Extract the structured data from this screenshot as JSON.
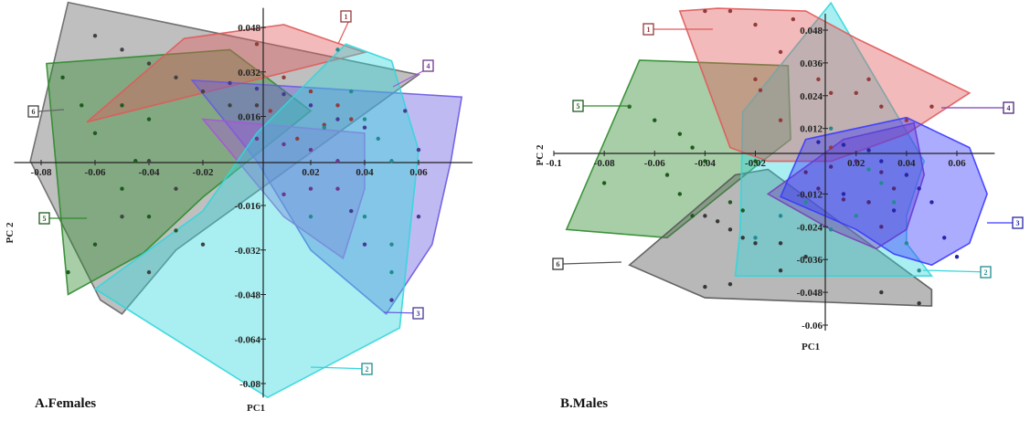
{
  "chart_data": [
    {
      "type": "scatter",
      "panel_title": "A.Females",
      "xlabel": "PC1",
      "ylabel": "PC 2",
      "xlim": [
        -0.09,
        0.08
      ],
      "ylim": [
        -0.085,
        0.055
      ],
      "xticks": [
        "-0.08",
        "-0.06",
        "-0.04",
        "-0.02",
        "0.02",
        "0.04",
        "0.06"
      ],
      "yticks": [
        "0.048",
        "0.032",
        "0.016",
        "-0.016",
        "-0.032",
        "-0.048",
        "-0.064",
        "-0.08"
      ],
      "groups": [
        {
          "name": "1",
          "color": "#e05a5a",
          "hull": [
            [
              -0.027,
              0.044
            ],
            [
              0.01,
              0.049
            ],
            [
              0.04,
              0.039
            ],
            [
              -0.063,
              0.014
            ]
          ],
          "points": [
            [
              0.0,
              0.042
            ],
            [
              0.01,
              0.03
            ],
            [
              0.02,
              0.025
            ],
            [
              0.025,
              0.013
            ],
            [
              0.03,
              0.02
            ],
            [
              0.035,
              0.015
            ],
            [
              0.005,
              0.018
            ],
            [
              0.015,
              0.008
            ]
          ]
        },
        {
          "name": "2",
          "color": "#33d6dc",
          "hull": [
            [
              0.033,
              0.042
            ],
            [
              0.05,
              0.036
            ],
            [
              0.06,
              0.004
            ],
            [
              0.053,
              -0.06
            ],
            [
              0.004,
              -0.085
            ],
            [
              -0.06,
              -0.046
            ],
            [
              -0.02,
              -0.018
            ],
            [
              0.0,
              0.01
            ]
          ],
          "points": [
            [
              0.03,
              0.04
            ],
            [
              0.035,
              0.025
            ],
            [
              0.04,
              0.015
            ],
            [
              0.045,
              0.008
            ],
            [
              0.05,
              0.0
            ],
            [
              0.025,
              0.012
            ],
            [
              0.02,
              -0.02
            ],
            [
              0.04,
              -0.02
            ],
            [
              0.05,
              -0.03
            ],
            [
              0.05,
              -0.04
            ]
          ]
        },
        {
          "name": "3",
          "color": "#6a5ae0",
          "hull": [
            [
              -0.024,
              0.029
            ],
            [
              0.076,
              0.023
            ],
            [
              0.072,
              0.0
            ],
            [
              0.065,
              -0.03
            ],
            [
              0.048,
              -0.055
            ],
            [
              0.02,
              -0.032
            ],
            [
              0.0,
              0.0
            ]
          ],
          "points": [
            [
              -0.01,
              0.028
            ],
            [
              0.0,
              0.026
            ],
            [
              0.01,
              0.024
            ],
            [
              0.02,
              0.02
            ],
            [
              0.03,
              0.015
            ],
            [
              0.04,
              0.012
            ],
            [
              0.055,
              0.018
            ],
            [
              0.06,
              0.004
            ],
            [
              0.06,
              -0.02
            ],
            [
              0.05,
              -0.05
            ],
            [
              0.04,
              -0.03
            ],
            [
              0.035,
              -0.018
            ]
          ]
        },
        {
          "name": "4",
          "color": "#a855d8",
          "hull": [
            [
              -0.02,
              0.015
            ],
            [
              0.04,
              0.01
            ],
            [
              0.04,
              -0.01
            ],
            [
              0.032,
              -0.035
            ],
            [
              0.01,
              -0.02
            ]
          ],
          "points": [
            [
              0.0,
              0.008
            ],
            [
              0.01,
              0.006
            ],
            [
              0.02,
              0.004
            ],
            [
              0.03,
              0.0
            ],
            [
              0.03,
              -0.01
            ],
            [
              0.02,
              -0.01
            ],
            [
              0.01,
              -0.012
            ]
          ]
        },
        {
          "name": "5",
          "color": "#2e8b2e",
          "hull": [
            [
              -0.078,
              0.035
            ],
            [
              -0.01,
              0.04
            ],
            [
              0.02,
              0.018
            ],
            [
              -0.02,
              -0.013
            ],
            [
              -0.042,
              -0.033
            ],
            [
              -0.07,
              -0.048
            ]
          ],
          "points": [
            [
              -0.072,
              0.03
            ],
            [
              -0.065,
              0.02
            ],
            [
              -0.06,
              0.01
            ],
            [
              -0.05,
              0.02
            ],
            [
              -0.04,
              0.015
            ],
            [
              -0.045,
              0.0
            ],
            [
              -0.05,
              -0.01
            ],
            [
              -0.04,
              -0.02
            ],
            [
              -0.03,
              -0.025
            ],
            [
              -0.06,
              -0.03
            ],
            [
              -0.07,
              -0.04
            ]
          ]
        },
        {
          "name": "6",
          "color": "#666666",
          "hull": [
            [
              -0.07,
              0.057
            ],
            [
              0.06,
              0.031
            ],
            [
              -0.03,
              -0.032
            ],
            [
              -0.05,
              -0.055
            ],
            [
              -0.058,
              -0.05
            ],
            [
              -0.084,
              0.0
            ]
          ],
          "points": [
            [
              -0.06,
              0.045
            ],
            [
              -0.05,
              0.04
            ],
            [
              -0.04,
              0.035
            ],
            [
              -0.03,
              0.03
            ],
            [
              -0.02,
              0.025
            ],
            [
              -0.01,
              0.02
            ],
            [
              0.0,
              0.02
            ],
            [
              -0.04,
              0.0
            ],
            [
              -0.03,
              -0.01
            ],
            [
              -0.05,
              -0.02
            ],
            [
              -0.04,
              -0.04
            ],
            [
              -0.02,
              -0.03
            ]
          ]
        }
      ]
    },
    {
      "type": "scatter",
      "panel_title": "B.Males",
      "xlabel": "PC1",
      "ylabel": "PC 2",
      "xlim": [
        -0.1,
        0.075
      ],
      "ylim": [
        -0.062,
        0.054
      ],
      "xticks": [
        "-0.1",
        "-0.08",
        "-0.06",
        "-0.04",
        "-0.02",
        "0.02",
        "0.04",
        "0.06"
      ],
      "yticks": [
        "0.048",
        "0.036",
        "0.024",
        "0.012",
        "-0.012",
        "-0.024",
        "-0.036",
        "-0.048",
        "-0.06"
      ],
      "groups": [
        {
          "name": "1",
          "color": "#e05a5a",
          "hull": [
            [
              -0.05,
              0.055
            ],
            [
              -0.035,
              0.056
            ],
            [
              0.0,
              0.055
            ],
            [
              0.02,
              0.045
            ],
            [
              0.065,
              0.025
            ],
            [
              0.04,
              0.01
            ],
            [
              0.01,
              0.0
            ],
            [
              -0.015,
              0.0
            ],
            [
              -0.03,
              0.005
            ]
          ],
          "points": [
            [
              -0.04,
              0.055
            ],
            [
              -0.03,
              0.055
            ],
            [
              -0.02,
              0.05
            ],
            [
              -0.005,
              0.052
            ],
            [
              -0.01,
              0.04
            ],
            [
              -0.02,
              0.03
            ],
            [
              -0.018,
              0.026
            ],
            [
              0.005,
              0.03
            ],
            [
              0.01,
              0.025
            ],
            [
              0.02,
              0.025
            ],
            [
              0.025,
              0.03
            ],
            [
              0.03,
              0.02
            ],
            [
              0.04,
              0.015
            ],
            [
              0.05,
              0.02
            ],
            [
              -0.01,
              0.015
            ],
            [
              0.01,
              0.005
            ]
          ]
        },
        {
          "name": "2",
          "color": "#33d6dc",
          "hull": [
            [
              0.01,
              0.058
            ],
            [
              0.047,
              0.0
            ],
            [
              0.04,
              -0.02
            ],
            [
              0.04,
              -0.03
            ],
            [
              0.05,
              -0.042
            ],
            [
              -0.028,
              -0.042
            ],
            [
              -0.026,
              -0.025
            ],
            [
              -0.025,
              0.018
            ]
          ],
          "points": [
            [
              0.01,
              0.012
            ],
            [
              0.015,
              0.006
            ],
            [
              0.025,
              -0.003
            ],
            [
              0.03,
              -0.008
            ],
            [
              0.035,
              -0.015
            ],
            [
              0.02,
              -0.02
            ],
            [
              0.01,
              -0.025
            ],
            [
              0.0,
              -0.015
            ],
            [
              -0.01,
              -0.02
            ],
            [
              -0.02,
              -0.028
            ],
            [
              0.04,
              -0.03
            ],
            [
              0.045,
              -0.04
            ]
          ]
        },
        {
          "name": "3",
          "color": "#3a3aff",
          "hull": [
            [
              0.0,
              0.008
            ],
            [
              0.04,
              0.016
            ],
            [
              0.065,
              0.005
            ],
            [
              0.072,
              -0.012
            ],
            [
              0.065,
              -0.03
            ],
            [
              0.05,
              -0.038
            ],
            [
              0.035,
              -0.034
            ],
            [
              0.02,
              -0.025
            ],
            [
              -0.01,
              -0.013
            ]
          ],
          "points": [
            [
              0.005,
              0.007
            ],
            [
              0.015,
              0.006
            ],
            [
              0.025,
              0.004
            ],
            [
              0.03,
              0.0
            ],
            [
              0.04,
              -0.005
            ],
            [
              0.045,
              -0.01
            ],
            [
              0.05,
              -0.015
            ],
            [
              0.035,
              -0.018
            ],
            [
              0.025,
              -0.015
            ],
            [
              0.015,
              -0.012
            ],
            [
              0.055,
              -0.028
            ],
            [
              0.06,
              -0.035
            ]
          ]
        },
        {
          "name": "4",
          "color": "#7a3fb8",
          "hull": [
            [
              -0.015,
              -0.012
            ],
            [
              0.015,
              0.008
            ],
            [
              0.043,
              0.014
            ],
            [
              0.047,
              -0.005
            ],
            [
              0.04,
              -0.025
            ],
            [
              0.028,
              -0.032
            ],
            [
              0.01,
              -0.025
            ]
          ],
          "points": [
            [
              0.0,
              -0.004
            ],
            [
              0.01,
              -0.002
            ],
            [
              0.02,
              0.0
            ],
            [
              0.03,
              -0.004
            ],
            [
              0.035,
              -0.01
            ],
            [
              0.025,
              -0.015
            ],
            [
              0.015,
              -0.014
            ],
            [
              0.005,
              -0.01
            ],
            [
              0.03,
              -0.024
            ]
          ]
        },
        {
          "name": "5",
          "color": "#2e8b2e",
          "hull": [
            [
              -0.066,
              0.037
            ],
            [
              -0.007,
              0.035
            ],
            [
              -0.006,
              0.008
            ],
            [
              -0.02,
              -0.002
            ],
            [
              -0.055,
              -0.028
            ],
            [
              -0.095,
              -0.025
            ]
          ],
          "points": [
            [
              -0.07,
              0.02
            ],
            [
              -0.06,
              0.015
            ],
            [
              -0.05,
              0.01
            ],
            [
              -0.045,
              0.005
            ],
            [
              -0.04,
              0.0
            ],
            [
              -0.055,
              -0.005
            ],
            [
              -0.05,
              -0.012
            ],
            [
              -0.045,
              -0.02
            ],
            [
              -0.03,
              -0.015
            ],
            [
              -0.025,
              -0.018
            ],
            [
              -0.02,
              0.0
            ],
            [
              -0.08,
              -0.008
            ]
          ]
        },
        {
          "name": "6",
          "color": "#555555",
          "hull": [
            [
              -0.07,
              -0.038
            ],
            [
              -0.028,
              -0.005
            ],
            [
              -0.015,
              -0.003
            ],
            [
              0.05,
              -0.047
            ],
            [
              0.05,
              -0.053
            ],
            [
              -0.04,
              -0.05
            ]
          ],
          "points": [
            [
              -0.04,
              -0.02
            ],
            [
              -0.035,
              -0.022
            ],
            [
              -0.03,
              -0.025
            ],
            [
              -0.025,
              -0.028
            ],
            [
              -0.02,
              -0.03
            ],
            [
              -0.01,
              -0.03
            ],
            [
              0.0,
              -0.035
            ],
            [
              -0.01,
              -0.04
            ],
            [
              -0.03,
              -0.045
            ],
            [
              -0.04,
              -0.046
            ],
            [
              0.03,
              -0.048
            ],
            [
              0.045,
              -0.052
            ]
          ]
        }
      ]
    }
  ]
}
